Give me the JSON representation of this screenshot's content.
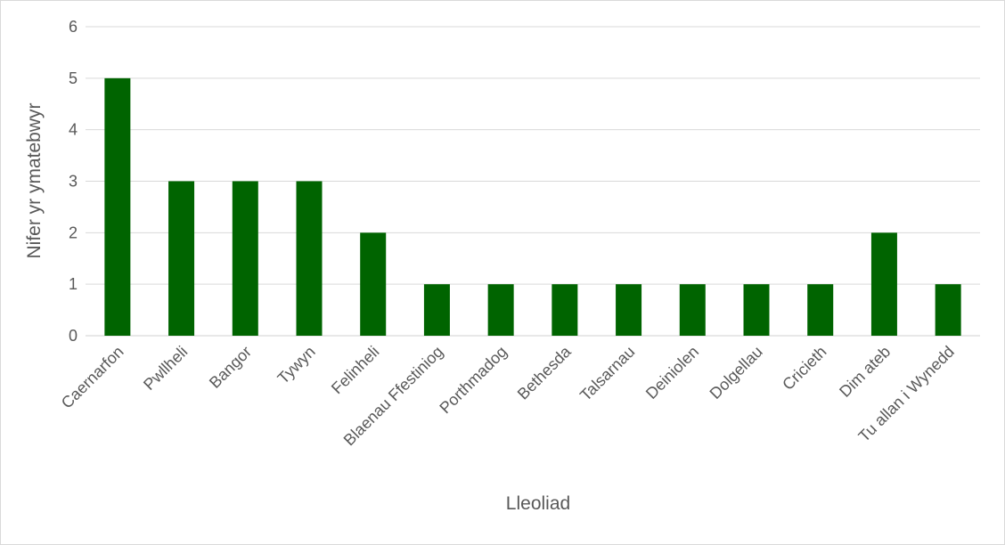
{
  "chart_data": {
    "type": "bar",
    "title": "",
    "xlabel": "Lleoliad",
    "ylabel": "Nifer yr ymatebwyr",
    "ylim": [
      0,
      6
    ],
    "yticks": [
      0,
      1,
      2,
      3,
      4,
      5,
      6
    ],
    "grid": true,
    "legend": "none",
    "bar_color": "#006400",
    "categories": [
      "Caernarfon",
      "Pwllheli",
      "Bangor",
      "Tywyn",
      "Felinheli",
      "Blaenau Ffestiniog",
      "Porthmadog",
      "Bethesda",
      "Talsarnau",
      "Deiniolen",
      "Dolgellau",
      "Cricieth",
      "Dim ateb",
      "Tu allan i Wynedd"
    ],
    "values": [
      5,
      3,
      3,
      3,
      2,
      1,
      1,
      1,
      1,
      1,
      1,
      1,
      2,
      1
    ]
  }
}
